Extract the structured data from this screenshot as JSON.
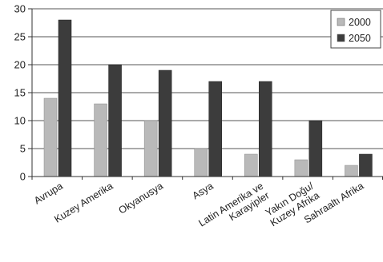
{
  "chart_data": {
    "type": "bar",
    "categories": [
      [
        "Avrupa"
      ],
      [
        "Kuzey Amerika"
      ],
      [
        "Okyanusya"
      ],
      [
        "Asya"
      ],
      [
        "Latin Amerika ve",
        "Karayipler"
      ],
      [
        "Yakın Doğu/",
        "Kuzey Afrika"
      ],
      [
        "Sahraaltı Afrika"
      ]
    ],
    "series": [
      {
        "name": "2000",
        "values": [
          14,
          13,
          10,
          5,
          4,
          3,
          2
        ],
        "color": "#b9b9b9"
      },
      {
        "name": "2050",
        "values": [
          28,
          20,
          19,
          17,
          17,
          10,
          4
        ],
        "color": "#3c3c3c"
      }
    ],
    "ylim": [
      0,
      30
    ],
    "yticks": [
      0,
      5,
      10,
      15,
      20,
      25,
      30
    ],
    "grid": true,
    "legend_position": "top-right",
    "title": "",
    "xlabel": "",
    "ylabel": ""
  }
}
